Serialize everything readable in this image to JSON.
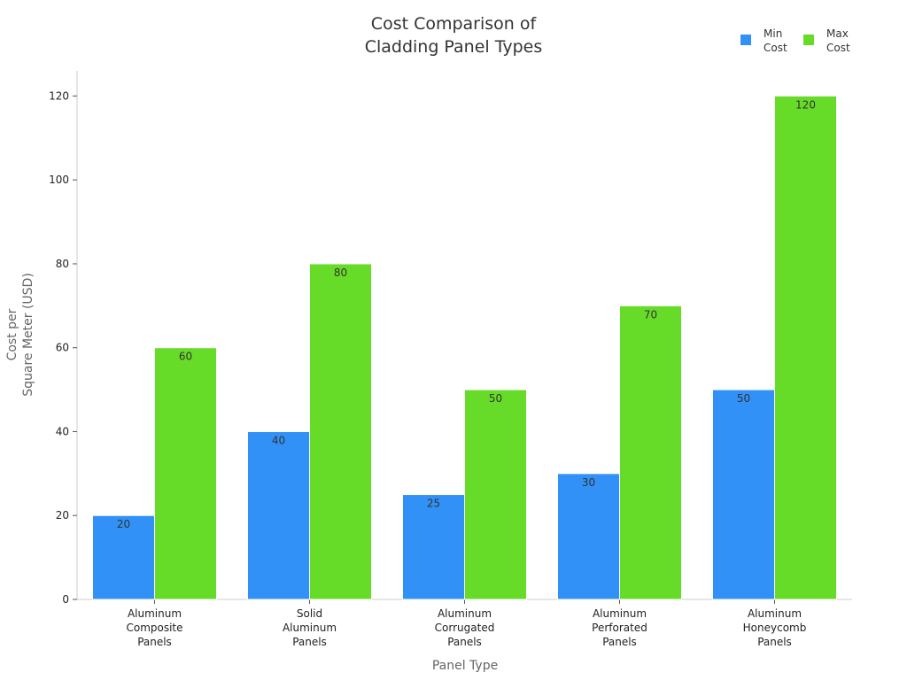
{
  "chart_data": {
    "type": "bar",
    "title": "Cost Comparison of\nCladding Panel Types",
    "x_label": "Panel Type",
    "y_label": "Cost per\nSquare Meter (USD)",
    "categories": [
      "Aluminum\nComposite\nPanels",
      "Solid\nAluminum\nPanels",
      "Aluminum\nCorrugated\nPanels",
      "Aluminum\nPerforated\nPanels",
      "Aluminum\nHoneycomb\nPanels"
    ],
    "series": [
      {
        "name": "Min\nCost",
        "color": "#3191f6",
        "values": [
          20,
          40,
          25,
          30,
          50
        ]
      },
      {
        "name": "Max\nCost",
        "color": "#66dc29",
        "values": [
          60,
          80,
          50,
          70,
          120
        ]
      }
    ],
    "ylim": [
      0,
      126
    ],
    "yticks": [
      0,
      20,
      40,
      60,
      80,
      100,
      120
    ],
    "grid": false,
    "legend": "top-right"
  }
}
